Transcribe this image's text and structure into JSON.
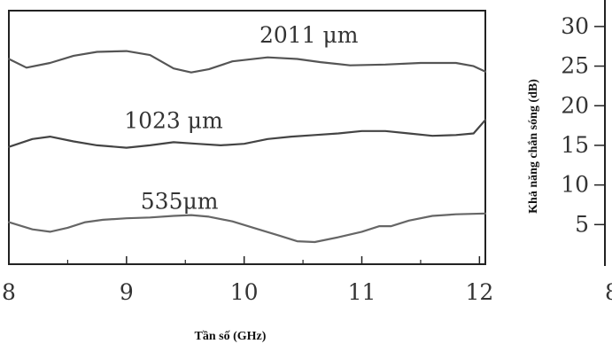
{
  "chart_data": {
    "type": "line",
    "xlabel": "Tần số (GHz)",
    "ylabel": "Khả năng chắn sóng (dB)",
    "xlim": [
      8,
      12.05
    ],
    "x_ticks": [
      "8",
      "9",
      "10",
      "11",
      "12"
    ],
    "y_ticks": [
      "30",
      "25",
      "20",
      "15",
      "10",
      "5"
    ],
    "legend": "none",
    "grid": false,
    "series": [
      {
        "name": "2011 μm",
        "color": "#555555",
        "points": [
          [
            8.0,
            25.9
          ],
          [
            8.15,
            24.8
          ],
          [
            8.35,
            25.4
          ],
          [
            8.55,
            26.3
          ],
          [
            8.75,
            26.8
          ],
          [
            9.0,
            26.9
          ],
          [
            9.2,
            26.4
          ],
          [
            9.4,
            24.7
          ],
          [
            9.55,
            24.2
          ],
          [
            9.7,
            24.6
          ],
          [
            9.9,
            25.6
          ],
          [
            10.2,
            26.1
          ],
          [
            10.45,
            25.9
          ],
          [
            10.65,
            25.5
          ],
          [
            10.9,
            25.1
          ],
          [
            11.2,
            25.2
          ],
          [
            11.5,
            25.4
          ],
          [
            11.8,
            25.4
          ],
          [
            11.95,
            25.0
          ],
          [
            12.05,
            24.3
          ]
        ]
      },
      {
        "name": "1023 μm",
        "color": "#444444",
        "points": [
          [
            8.0,
            14.8
          ],
          [
            8.2,
            15.8
          ],
          [
            8.35,
            16.1
          ],
          [
            8.55,
            15.5
          ],
          [
            8.75,
            15.0
          ],
          [
            9.0,
            14.7
          ],
          [
            9.2,
            15.0
          ],
          [
            9.4,
            15.4
          ],
          [
            9.6,
            15.2
          ],
          [
            9.8,
            15.0
          ],
          [
            10.0,
            15.2
          ],
          [
            10.2,
            15.8
          ],
          [
            10.4,
            16.1
          ],
          [
            10.6,
            16.3
          ],
          [
            10.8,
            16.5
          ],
          [
            11.0,
            16.8
          ],
          [
            11.2,
            16.8
          ],
          [
            11.4,
            16.5
          ],
          [
            11.6,
            16.2
          ],
          [
            11.8,
            16.3
          ],
          [
            11.95,
            16.5
          ],
          [
            12.05,
            18.2
          ]
        ]
      },
      {
        "name": "535μm",
        "color": "#666666",
        "points": [
          [
            8.0,
            5.3
          ],
          [
            8.2,
            4.4
          ],
          [
            8.35,
            4.1
          ],
          [
            8.5,
            4.6
          ],
          [
            8.65,
            5.3
          ],
          [
            8.8,
            5.6
          ],
          [
            9.0,
            5.8
          ],
          [
            9.2,
            5.9
          ],
          [
            9.4,
            6.1
          ],
          [
            9.55,
            6.2
          ],
          [
            9.7,
            6.0
          ],
          [
            9.9,
            5.4
          ],
          [
            10.1,
            4.5
          ],
          [
            10.3,
            3.6
          ],
          [
            10.45,
            2.9
          ],
          [
            10.6,
            2.8
          ],
          [
            10.8,
            3.4
          ],
          [
            11.0,
            4.1
          ],
          [
            11.15,
            4.8
          ],
          [
            11.25,
            4.8
          ],
          [
            11.4,
            5.5
          ],
          [
            11.6,
            6.1
          ],
          [
            11.8,
            6.3
          ],
          [
            12.05,
            6.4
          ]
        ]
      }
    ]
  }
}
